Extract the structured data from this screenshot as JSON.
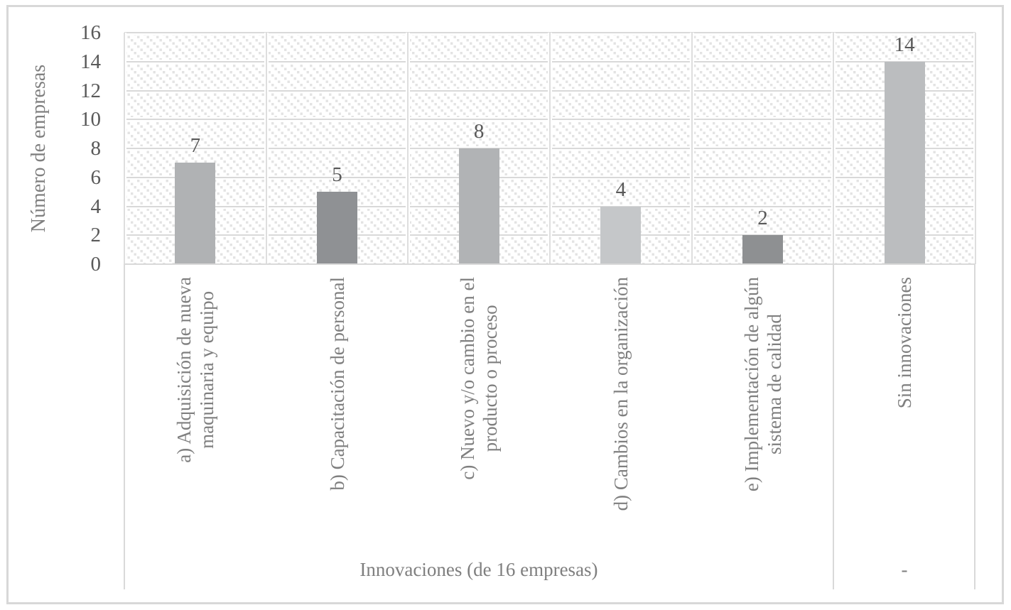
{
  "chart_data": {
    "type": "bar",
    "title": "",
    "ylabel": "Número de empresas",
    "xlabel": "",
    "categories": [
      "a) Adquisición de nueva\nmaquinaria y equipo",
      "b) Capacitación de personal",
      "c) Nuevo y/o cambio en el\nproducto o proceso",
      "d) Cambios en la organización",
      "e) Implementación de algún\nsistema de calidad",
      "Sin innovaciones"
    ],
    "values": [
      7,
      5,
      8,
      4,
      2,
      14
    ],
    "bar_colors": [
      "#b0b2b4",
      "#8f9194",
      "#b1b3b5",
      "#c5c7c9",
      "#8e9092",
      "#bbbdbf"
    ],
    "y_ticks": [
      0,
      2,
      4,
      6,
      8,
      10,
      12,
      14,
      16
    ],
    "ylim": [
      0,
      16
    ],
    "x_groups": [
      {
        "label": "Innovaciones (de 16 empresas)",
        "span": 5
      },
      {
        "label": "-",
        "span": 1
      }
    ],
    "grid": "horizontal major gridlines + vertical category dividers",
    "legend": "none",
    "plot_background": "light diagonal dotted hatch pattern"
  },
  "colors": {
    "grid": "#d9d9d9",
    "hatch_dot": "#e3e3e3",
    "value_text": "#595959",
    "axis_label_text": "#7f7f7f",
    "frame_border": "#d8d8d8"
  }
}
